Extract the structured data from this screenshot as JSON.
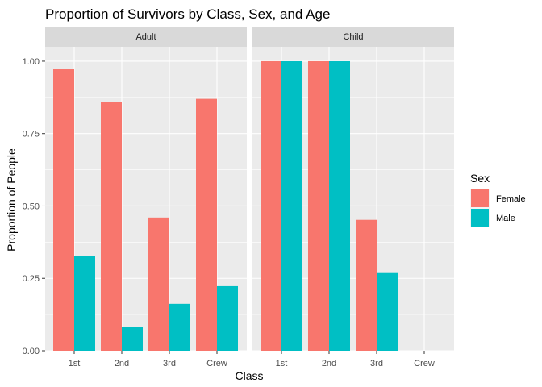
{
  "chart_data": {
    "type": "bar",
    "title": "Proportion of Survivors by Class, Sex, and Age",
    "xlabel": "Class",
    "ylabel": "Proportion of People",
    "categories": [
      "1st",
      "2nd",
      "3rd",
      "Crew"
    ],
    "ylim": [
      0,
      1.05
    ],
    "yticks": [
      "0.00",
      "0.25",
      "0.50",
      "0.75",
      "1.00"
    ],
    "ytick_values": [
      0,
      0.25,
      0.5,
      0.75,
      1.0
    ],
    "grid": true,
    "legend": {
      "title": "Sex",
      "position": "right",
      "entries": [
        "Female",
        "Male"
      ]
    },
    "series_colors": {
      "Female": "#F8766D",
      "Male": "#00BFC4"
    },
    "panels": [
      {
        "label": "Adult",
        "series": [
          {
            "name": "Female",
            "values": [
              0.972,
              0.86,
              0.46,
              0.87
            ]
          },
          {
            "name": "Male",
            "values": [
              0.326,
              0.083,
              0.162,
              0.223
            ]
          }
        ]
      },
      {
        "label": "Child",
        "series": [
          {
            "name": "Female",
            "values": [
              1.0,
              1.0,
              0.452,
              null
            ]
          },
          {
            "name": "Male",
            "values": [
              1.0,
              1.0,
              0.271,
              null
            ]
          }
        ]
      }
    ]
  }
}
